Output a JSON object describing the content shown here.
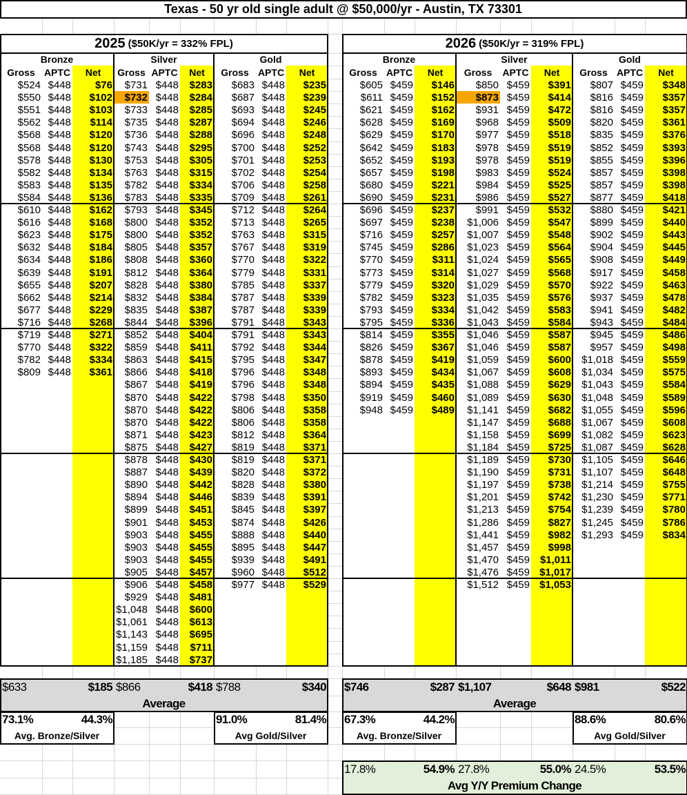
{
  "title": "Texas - 50 yr old single adult @ $50,000/yr - Austin, TX 73301",
  "colors": {
    "net_column": "#ffff00",
    "highlight": "#f7a600",
    "summary": "#d9d9d9",
    "yoy": "#e2efda"
  },
  "column_headers": [
    "Gross",
    "APTC",
    "Net"
  ],
  "years": [
    {
      "year": "2025",
      "fpl": "($50K/yr = 332% FPL)",
      "highlight": {
        "tier": 1,
        "row": 1
      },
      "tiers": [
        {
          "name": "Bronze",
          "aptc": "$448",
          "gross": [
            "$524",
            "$550",
            "$551",
            "$562",
            "$568",
            "$568",
            "$578",
            "$582",
            "$583",
            "$584",
            "$610",
            "$616",
            "$623",
            "$632",
            "$634",
            "$639",
            "$655",
            "$662",
            "$677",
            "$716",
            "$719",
            "$770",
            "$782",
            "$809"
          ],
          "net": [
            "$76",
            "$102",
            "$103",
            "$114",
            "$120",
            "$120",
            "$130",
            "$134",
            "$135",
            "$136",
            "$162",
            "$168",
            "$175",
            "$184",
            "$186",
            "$191",
            "$207",
            "$214",
            "$229",
            "$268",
            "$271",
            "$322",
            "$334",
            "$361"
          ]
        },
        {
          "name": "Silver",
          "aptc": "$448",
          "gross": [
            "$731",
            "$732",
            "$733",
            "$735",
            "$736",
            "$743",
            "$753",
            "$763",
            "$782",
            "$783",
            "$793",
            "$800",
            "$800",
            "$805",
            "$808",
            "$812",
            "$828",
            "$832",
            "$835",
            "$844",
            "$852",
            "$859",
            "$863",
            "$866",
            "$867",
            "$870",
            "$870",
            "$870",
            "$871",
            "$875",
            "$878",
            "$887",
            "$890",
            "$894",
            "$899",
            "$901",
            "$903",
            "$903",
            "$903",
            "$905",
            "$906",
            "$929",
            "$1,048",
            "$1,061",
            "$1,143",
            "$1,159",
            "$1,185"
          ],
          "net": [
            "$283",
            "$284",
            "$285",
            "$287",
            "$288",
            "$295",
            "$305",
            "$315",
            "$334",
            "$335",
            "$345",
            "$352",
            "$352",
            "$357",
            "$360",
            "$364",
            "$380",
            "$384",
            "$387",
            "$396",
            "$404",
            "$411",
            "$415",
            "$418",
            "$419",
            "$422",
            "$422",
            "$422",
            "$423",
            "$427",
            "$430",
            "$439",
            "$442",
            "$446",
            "$451",
            "$453",
            "$455",
            "$455",
            "$455",
            "$457",
            "$458",
            "$481",
            "$600",
            "$613",
            "$695",
            "$711",
            "$737"
          ]
        },
        {
          "name": "Gold",
          "aptc": "$448",
          "gross": [
            "$683",
            "$687",
            "$693",
            "$694",
            "$696",
            "$700",
            "$701",
            "$702",
            "$706",
            "$709",
            "$712",
            "$713",
            "$763",
            "$767",
            "$770",
            "$779",
            "$785",
            "$787",
            "$787",
            "$791",
            "$791",
            "$792",
            "$795",
            "$796",
            "$796",
            "$798",
            "$806",
            "$806",
            "$812",
            "$819",
            "$819",
            "$820",
            "$828",
            "$839",
            "$845",
            "$874",
            "$888",
            "$895",
            "$939",
            "$960",
            "$977"
          ],
          "net": [
            "$235",
            "$239",
            "$245",
            "$246",
            "$248",
            "$252",
            "$253",
            "$254",
            "$258",
            "$261",
            "$264",
            "$265",
            "$315",
            "$319",
            "$322",
            "$331",
            "$337",
            "$339",
            "$339",
            "$343",
            "$343",
            "$344",
            "$347",
            "$348",
            "$348",
            "$350",
            "$358",
            "$358",
            "$364",
            "$371",
            "$371",
            "$372",
            "$380",
            "$391",
            "$397",
            "$426",
            "$440",
            "$447",
            "$491",
            "$512",
            "$529"
          ]
        }
      ],
      "averages": [
        "$633",
        "",
        "$185",
        "$866",
        "",
        "$418",
        "$788",
        "",
        "$340"
      ],
      "average_label": "Average",
      "ratios": [
        "73.1%",
        "44.3%",
        "91.0%",
        "81.4%"
      ],
      "ratio_labels": [
        "Avg. Bronze/Silver",
        "Avg Gold/Silver"
      ]
    },
    {
      "year": "2026",
      "fpl": "($50K/yr = 319% FPL)",
      "highlight": {
        "tier": 1,
        "row": 1
      },
      "tiers": [
        {
          "name": "Bronze",
          "aptc": "$459",
          "gross": [
            "$605",
            "$611",
            "$621",
            "$628",
            "$629",
            "$642",
            "$652",
            "$657",
            "$680",
            "$690",
            "$696",
            "$697",
            "$716",
            "$745",
            "$770",
            "$773",
            "$779",
            "$782",
            "$793",
            "$795",
            "$814",
            "$826",
            "$878",
            "$893",
            "$894",
            "$919",
            "$948"
          ],
          "net": [
            "$146",
            "$152",
            "$162",
            "$169",
            "$170",
            "$183",
            "$193",
            "$198",
            "$221",
            "$231",
            "$237",
            "$238",
            "$257",
            "$286",
            "$311",
            "$314",
            "$320",
            "$323",
            "$334",
            "$336",
            "$355",
            "$367",
            "$419",
            "$434",
            "$435",
            "$460",
            "$489"
          ]
        },
        {
          "name": "Silver",
          "aptc": "$459",
          "gross": [
            "$850",
            "$873",
            "$931",
            "$968",
            "$977",
            "$978",
            "$978",
            "$983",
            "$984",
            "$986",
            "$991",
            "$1,006",
            "$1,007",
            "$1,023",
            "$1,024",
            "$1,027",
            "$1,029",
            "$1,035",
            "$1,042",
            "$1,043",
            "$1,046",
            "$1,046",
            "$1,059",
            "$1,067",
            "$1,088",
            "$1,089",
            "$1,141",
            "$1,147",
            "$1,158",
            "$1,184",
            "$1,189",
            "$1,190",
            "$1,197",
            "$1,201",
            "$1,213",
            "$1,286",
            "$1,441",
            "$1,457",
            "$1,470",
            "$1,476",
            "$1,512"
          ],
          "net": [
            "$391",
            "$414",
            "$472",
            "$509",
            "$518",
            "$519",
            "$519",
            "$524",
            "$525",
            "$527",
            "$532",
            "$547",
            "$548",
            "$564",
            "$565",
            "$568",
            "$570",
            "$576",
            "$583",
            "$584",
            "$587",
            "$587",
            "$600",
            "$608",
            "$629",
            "$630",
            "$682",
            "$688",
            "$699",
            "$725",
            "$730",
            "$731",
            "$738",
            "$742",
            "$754",
            "$827",
            "$982",
            "$998",
            "$1,011",
            "$1,017",
            "$1,053"
          ]
        },
        {
          "name": "Gold",
          "aptc": "$459",
          "gross": [
            "$807",
            "$816",
            "$816",
            "$820",
            "$835",
            "$852",
            "$855",
            "$857",
            "$857",
            "$877",
            "$880",
            "$899",
            "$902",
            "$904",
            "$908",
            "$917",
            "$922",
            "$937",
            "$941",
            "$943",
            "$945",
            "$957",
            "$1,018",
            "$1,034",
            "$1,043",
            "$1,048",
            "$1,055",
            "$1,067",
            "$1,082",
            "$1,087",
            "$1,105",
            "$1,107",
            "$1,214",
            "$1,230",
            "$1,239",
            "$1,245",
            "$1,293"
          ],
          "net": [
            "$348",
            "$357",
            "$357",
            "$361",
            "$376",
            "$393",
            "$396",
            "$398",
            "$398",
            "$418",
            "$421",
            "$440",
            "$443",
            "$445",
            "$449",
            "$458",
            "$463",
            "$478",
            "$482",
            "$484",
            "$486",
            "$498",
            "$559",
            "$575",
            "$584",
            "$589",
            "$596",
            "$608",
            "$623",
            "$628",
            "$646",
            "$648",
            "$755",
            "$771",
            "$780",
            "$786",
            "$834"
          ]
        }
      ],
      "averages": [
        "$746",
        "",
        "$287",
        "$1,107",
        "",
        "$648",
        "$981",
        "",
        "$522"
      ],
      "average_label": "Average",
      "ratios": [
        "67.3%",
        "44.2%",
        "88.6%",
        "80.6%"
      ],
      "ratio_labels": [
        "Avg. Bronze/Silver",
        "Avg Gold/Silver"
      ]
    }
  ],
  "yoy": {
    "values": [
      "17.8%",
      "",
      "54.9%",
      "27.8%",
      "",
      "55.0%",
      "24.5%",
      "",
      "53.5%"
    ],
    "label": "Avg Y/Y Premium Change"
  }
}
